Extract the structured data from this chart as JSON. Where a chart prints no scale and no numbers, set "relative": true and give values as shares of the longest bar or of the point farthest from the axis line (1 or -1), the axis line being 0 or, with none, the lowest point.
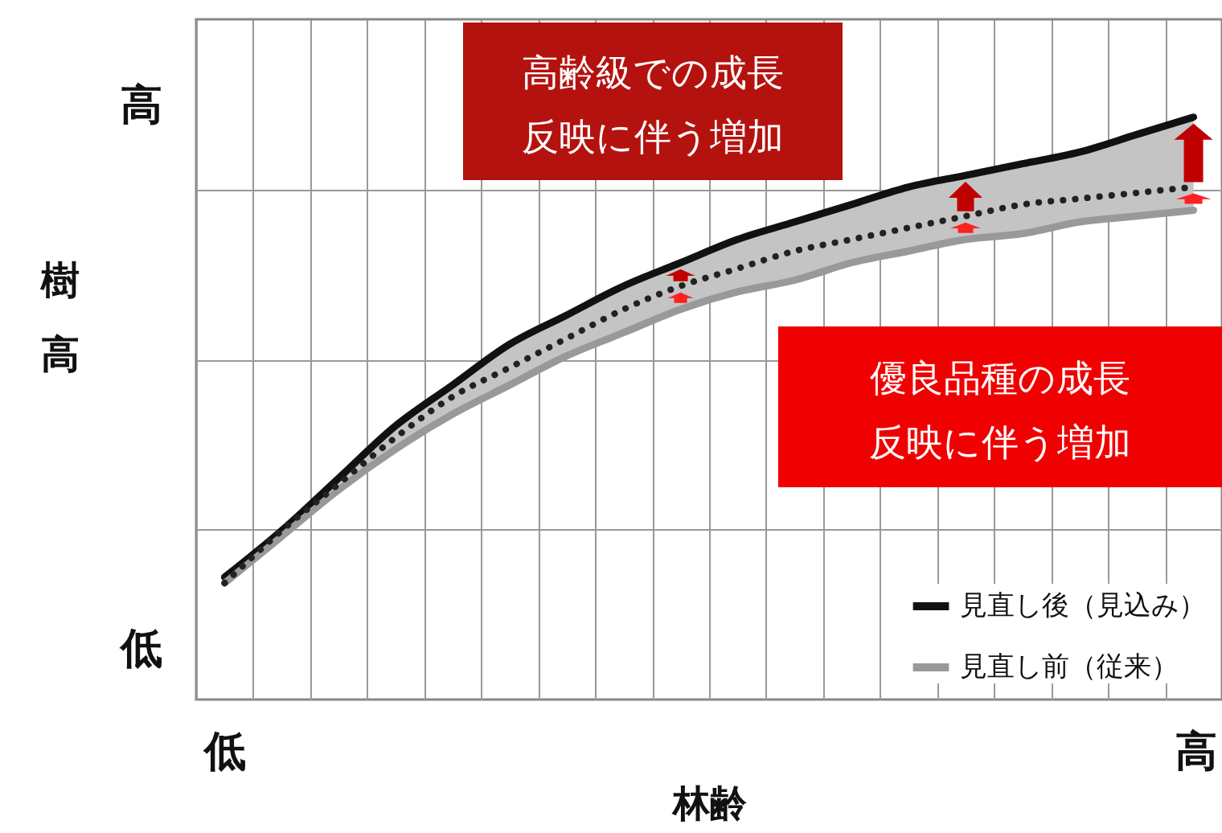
{
  "chart_data": {
    "type": "line",
    "relative": true,
    "xlabel": "林齢",
    "ylabel": "樹高",
    "categories": [
      null,
      null,
      null,
      null,
      null,
      null,
      null,
      null,
      null,
      null,
      null,
      null,
      null,
      null,
      null,
      null,
      null,
      null
    ],
    "series": [
      {
        "name": "見直し後（見込み）",
        "color": "#111111",
        "values": [
          0.21,
          0.29,
          0.38,
          0.47,
          0.54,
          0.61,
          0.66,
          0.71,
          0.75,
          0.79,
          0.82,
          0.85,
          0.88,
          0.9,
          0.92,
          0.94,
          0.97,
          1
        ]
      },
      {
        "name": "見直し前（従来）",
        "color": "#999999",
        "values": [
          0.2,
          0.28,
          0.36,
          0.43,
          0.49,
          0.54,
          0.59,
          0.63,
          0.67,
          0.7,
          0.72,
          0.75,
          0.77,
          0.79,
          0.8,
          0.82,
          0.83,
          0.84
        ]
      },
      {
        "color": "#222222",
        "line_style": "dotted",
        "values": [
          0.2,
          0.29,
          0.37,
          0.45,
          0.52,
          0.57,
          0.62,
          0.67,
          0.71,
          0.74,
          0.77,
          0.79,
          0.81,
          0.83,
          0.85,
          0.86,
          0.87,
          0.88
        ],
        "lower": [
          0.2,
          0.28,
          0.36,
          0.43,
          0.49,
          0.54,
          0.59,
          0.63,
          0.67,
          0.7,
          0.72,
          0.75,
          0.77,
          0.79,
          0.8,
          0.82,
          0.83,
          0.84
        ],
        "upper": [
          0.21,
          0.29,
          0.38,
          0.47,
          0.54,
          0.61,
          0.66,
          0.71,
          0.75,
          0.79,
          0.82,
          0.85,
          0.88,
          0.9,
          0.92,
          0.94,
          0.97,
          1
        ]
      }
    ],
    "annotations": [
      "高齢級での成長反映に伴う増加",
      "優良品種の成長反映に伴う増加",
      "高",
      "低",
      "低",
      "高"
    ],
    "grid": true,
    "legend": "bottom right",
    "marker": "none"
  }
}
